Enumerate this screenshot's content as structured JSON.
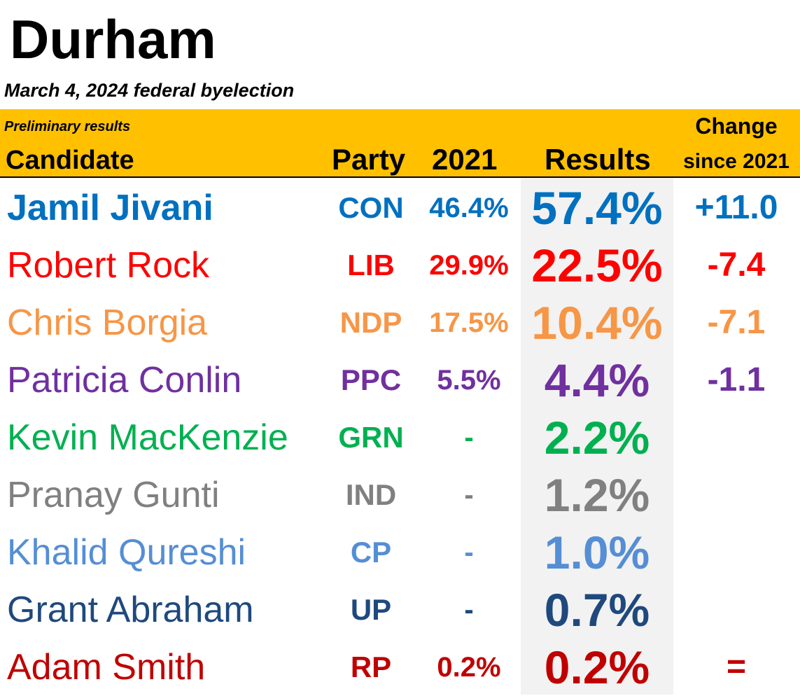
{
  "title": "Durham",
  "subtitle": "March 4, 2024 federal byelection",
  "header": {
    "preliminary": "Preliminary results",
    "candidate": "Candidate",
    "party": "Party",
    "prev_year": "2021",
    "results": "Results",
    "change_line1": "Change",
    "change_line2": "since 2021"
  },
  "colors": {
    "header_band": "#ffc000",
    "results_column": "#f2f2f2"
  },
  "rows": [
    {
      "name": "Jamil Jivani",
      "party": "CON",
      "prev": "46.4%",
      "result": "57.4%",
      "change": "+11.0",
      "color": "#0070c0",
      "bold": true
    },
    {
      "name": "Robert Rock",
      "party": "LIB",
      "prev": "29.9%",
      "result": "22.5%",
      "change": "-7.4",
      "color": "#ff0000",
      "bold": false
    },
    {
      "name": "Chris Borgia",
      "party": "NDP",
      "prev": "17.5%",
      "result": "10.4%",
      "change": "-7.1",
      "color": "#f79646",
      "bold": false
    },
    {
      "name": "Patricia Conlin",
      "party": "PPC",
      "prev": "5.5%",
      "result": "4.4%",
      "change": "-1.1",
      "color": "#7030a0",
      "bold": false
    },
    {
      "name": "Kevin MacKenzie",
      "party": "GRN",
      "prev": "-",
      "result": "2.2%",
      "change": "",
      "color": "#00b050",
      "bold": false
    },
    {
      "name": "Pranay Gunti",
      "party": "IND",
      "prev": "-",
      "result": "1.2%",
      "change": "",
      "color": "#808080",
      "bold": false
    },
    {
      "name": "Khalid Qureshi",
      "party": "CP",
      "prev": "-",
      "result": "1.0%",
      "change": "",
      "color": "#558ed5",
      "bold": false
    },
    {
      "name": "Grant Abraham",
      "party": "UP",
      "prev": "-",
      "result": "0.7%",
      "change": "",
      "color": "#1f497d",
      "bold": false
    },
    {
      "name": "Adam Smith",
      "party": "RP",
      "prev": "0.2%",
      "result": "0.2%",
      "change": "=",
      "color": "#c00000",
      "bold": false
    }
  ]
}
